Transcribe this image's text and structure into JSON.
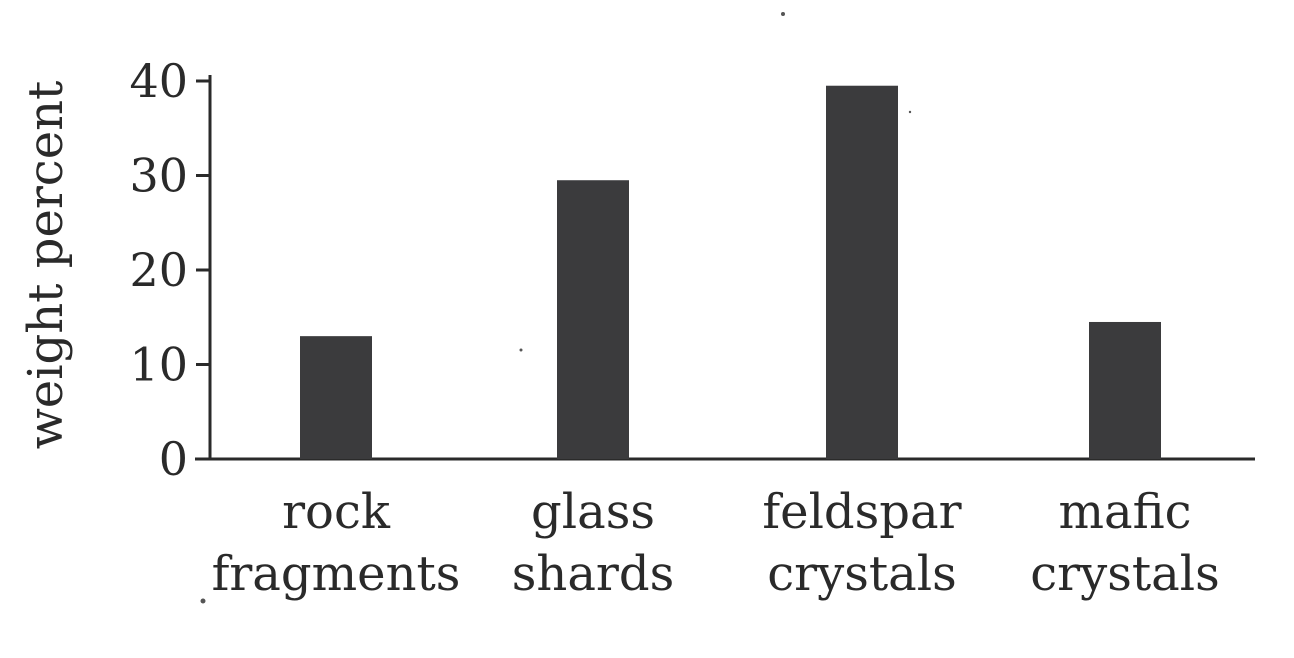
{
  "chart_data": {
    "type": "bar",
    "title": "",
    "xlabel": "",
    "ylabel": "weight percent",
    "ylim": [
      0,
      40
    ],
    "yticks": [
      0,
      10,
      20,
      30,
      40
    ],
    "grid": false,
    "categories": [
      [
        "rock",
        "fragments"
      ],
      [
        "glass",
        "shards"
      ],
      [
        "feldspar",
        "crystals"
      ],
      [
        "mafic",
        "crystals"
      ]
    ],
    "values": [
      13,
      29.5,
      39.5,
      14.5
    ],
    "colors": {
      "bar": "#3b3b3d",
      "axis": "#2a2a2a",
      "text": "#2a2a2a"
    }
  }
}
